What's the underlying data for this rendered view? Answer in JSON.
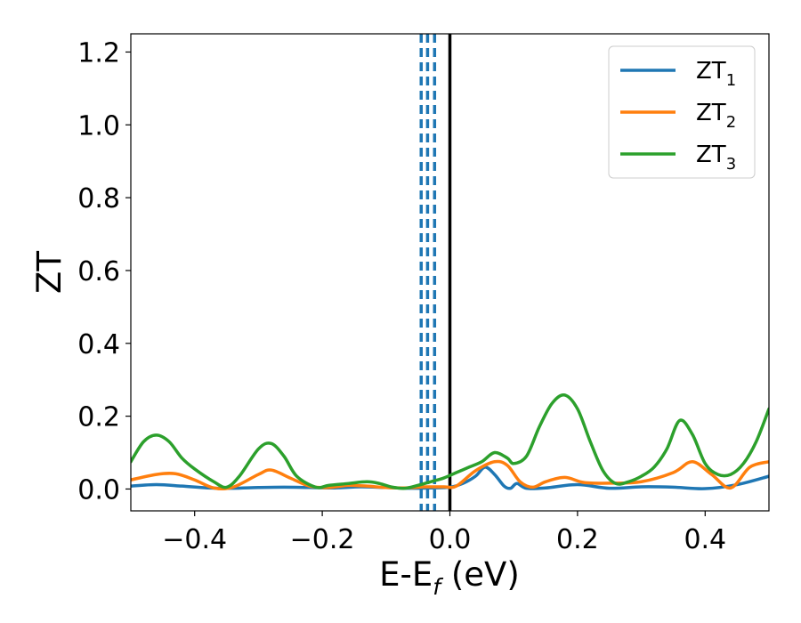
{
  "chart_data": {
    "type": "line",
    "xlabel_main": "E-E",
    "xlabel_sub": "f",
    "xlabel_unit": " (eV)",
    "ylabel": "ZT",
    "xlim": [
      -0.5,
      0.5
    ],
    "ylim": [
      -0.06,
      1.25
    ],
    "x_ticks": [
      -0.4,
      -0.2,
      0.0,
      0.2,
      0.4
    ],
    "x_tick_labels": [
      "−0.4",
      "−0.2",
      "0.0",
      "0.2",
      "0.4"
    ],
    "y_ticks": [
      0.0,
      0.2,
      0.4,
      0.6,
      0.8,
      1.0,
      1.2
    ],
    "y_tick_labels": [
      "0.0",
      "0.2",
      "0.4",
      "0.6",
      "0.8",
      "1.0",
      "1.2"
    ],
    "grid": false,
    "legend_position": "top-right",
    "series": [
      {
        "name_main": "ZT",
        "name_sub": "1",
        "color": "#1f77b4",
        "x": [
          -0.5,
          -0.46,
          -0.42,
          -0.38,
          -0.34,
          -0.3,
          -0.26,
          -0.22,
          -0.18,
          -0.14,
          -0.1,
          -0.06,
          -0.03,
          0.0,
          0.02,
          0.04,
          0.055,
          0.07,
          0.085,
          0.095,
          0.105,
          0.12,
          0.15,
          0.2,
          0.25,
          0.3,
          0.35,
          0.4,
          0.45,
          0.5
        ],
        "y": [
          0.008,
          0.012,
          0.008,
          0.003,
          0.002,
          0.004,
          0.005,
          0.004,
          0.003,
          0.006,
          0.004,
          0.002,
          0.003,
          0.005,
          0.015,
          0.035,
          0.06,
          0.04,
          0.008,
          0.002,
          0.015,
          0.002,
          0.003,
          0.012,
          0.002,
          0.006,
          0.005,
          0.001,
          0.012,
          0.035
        ]
      },
      {
        "name_main": "ZT",
        "name_sub": "2",
        "color": "#ff7f0e",
        "x": [
          -0.5,
          -0.46,
          -0.43,
          -0.4,
          -0.37,
          -0.34,
          -0.3,
          -0.28,
          -0.25,
          -0.22,
          -0.19,
          -0.16,
          -0.13,
          -0.1,
          -0.07,
          -0.04,
          -0.01,
          0.01,
          0.04,
          0.07,
          0.09,
          0.11,
          0.13,
          0.15,
          0.18,
          0.21,
          0.25,
          0.3,
          0.35,
          0.38,
          0.41,
          0.44,
          0.47,
          0.5
        ],
        "y": [
          0.025,
          0.04,
          0.042,
          0.025,
          0.003,
          0.005,
          0.04,
          0.052,
          0.03,
          0.008,
          0.004,
          0.01,
          0.008,
          0.004,
          0.003,
          0.006,
          0.006,
          0.008,
          0.05,
          0.075,
          0.065,
          0.02,
          0.005,
          0.02,
          0.032,
          0.018,
          0.016,
          0.02,
          0.045,
          0.075,
          0.04,
          0.003,
          0.06,
          0.075
        ]
      },
      {
        "name_main": "ZT",
        "name_sub": "3",
        "color": "#2ca02c",
        "x": [
          -0.5,
          -0.48,
          -0.46,
          -0.44,
          -0.42,
          -0.4,
          -0.37,
          -0.35,
          -0.33,
          -0.3,
          -0.28,
          -0.26,
          -0.24,
          -0.21,
          -0.19,
          -0.16,
          -0.13,
          -0.11,
          -0.09,
          -0.07,
          -0.05,
          -0.03,
          -0.01,
          0.01,
          0.03,
          0.05,
          0.07,
          0.09,
          0.1,
          0.12,
          0.14,
          0.16,
          0.18,
          0.2,
          0.22,
          0.24,
          0.26,
          0.28,
          0.3,
          0.32,
          0.34,
          0.36,
          0.38,
          0.4,
          0.42,
          0.44,
          0.46,
          0.48,
          0.5
        ],
        "y": [
          0.075,
          0.13,
          0.148,
          0.13,
          0.085,
          0.055,
          0.02,
          0.005,
          0.035,
          0.11,
          0.125,
          0.09,
          0.035,
          0.005,
          0.01,
          0.015,
          0.02,
          0.015,
          0.005,
          0.002,
          0.01,
          0.02,
          0.03,
          0.045,
          0.06,
          0.075,
          0.1,
          0.085,
          0.07,
          0.09,
          0.17,
          0.235,
          0.258,
          0.22,
          0.13,
          0.05,
          0.015,
          0.02,
          0.035,
          0.06,
          0.11,
          0.188,
          0.15,
          0.07,
          0.04,
          0.04,
          0.07,
          0.13,
          0.22
        ]
      }
    ],
    "vlines": [
      {
        "x": -0.045,
        "color": "#1f77b4",
        "style": "dashed"
      },
      {
        "x": -0.035,
        "color": "#1f77b4",
        "style": "dashed"
      },
      {
        "x": -0.024,
        "color": "#1f77b4",
        "style": "dashed"
      },
      {
        "x": 0.0,
        "color": "#000000",
        "style": "solid"
      }
    ]
  }
}
